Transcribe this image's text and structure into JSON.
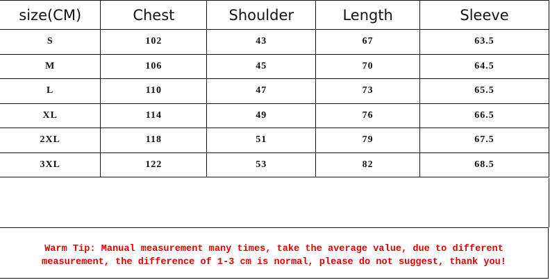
{
  "table": {
    "headers": [
      "size(CM)",
      "Chest",
      "Shoulder",
      "Length",
      "Sleeve"
    ],
    "rows": [
      [
        "S",
        "102",
        "43",
        "67",
        "63.5"
      ],
      [
        "M",
        "106",
        "45",
        "70",
        "64.5"
      ],
      [
        "L",
        "110",
        "47",
        "73",
        "65.5"
      ],
      [
        "XL",
        "114",
        "49",
        "76",
        "66.5"
      ],
      [
        "2XL",
        "118",
        "51",
        "79",
        "67.5"
      ],
      [
        "3XL",
        "122",
        "53",
        "82",
        "68.5"
      ]
    ]
  },
  "tip": {
    "line1": "Warm Tip: Manual measurement many times, take the average value, due to different",
    "line2": "measurement, the difference of 1-3 cm is normal, please do not suggest, thank you!",
    "color": "#e00000"
  }
}
